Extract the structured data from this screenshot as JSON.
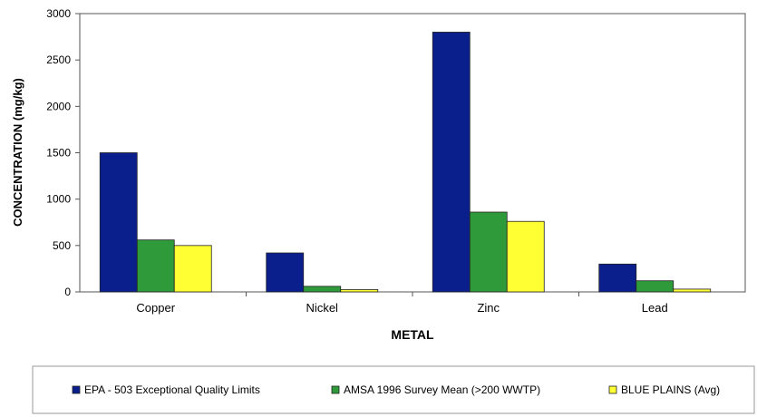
{
  "chart_data": {
    "type": "bar",
    "title": "",
    "xlabel": "METAL",
    "ylabel": "CONCENTRATION (mg/kg)",
    "categories": [
      "Copper",
      "Nickel",
      "Zinc",
      "Lead"
    ],
    "ylim": [
      0,
      3000
    ],
    "yticks": [
      0,
      500,
      1000,
      1500,
      2000,
      2500,
      3000
    ],
    "grid": false,
    "legend_position": "bottom",
    "series": [
      {
        "name": "EPA - 503 Exceptional Quality Limits",
        "color": "#0a1f8c",
        "values": [
          1500,
          420,
          2800,
          300
        ]
      },
      {
        "name": "AMSA 1996 Survey Mean (>200 WWTP)",
        "color": "#2e9a3a",
        "values": [
          560,
          60,
          860,
          120
        ]
      },
      {
        "name": "BLUE PLAINS (Avg)",
        "color": "#ffff33",
        "values": [
          500,
          25,
          760,
          30
        ]
      }
    ]
  }
}
